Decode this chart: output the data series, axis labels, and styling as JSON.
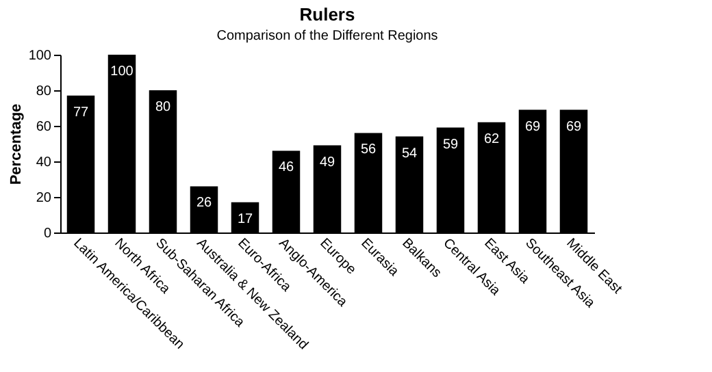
{
  "chart_data": {
    "type": "bar",
    "title": "Rulers",
    "subtitle": "Comparison of the Different Regions",
    "ylabel": "Percentage",
    "categories": [
      "Latin America/Caribbean",
      "North Africa",
      "Sub-Saharan Africa",
      "Australia & New Zealand",
      "Euro-Africa",
      "Anglo-America",
      "Europe",
      "Eurasia",
      "Balkans",
      "Central Asia",
      "East Asia",
      "Southeast Asia",
      "Middle East"
    ],
    "values": [
      77,
      100,
      80,
      26,
      17,
      46,
      49,
      56,
      54,
      59,
      62,
      69,
      69
    ],
    "color": "#000000",
    "ylim": [
      0,
      100
    ],
    "yticks": [
      0,
      20,
      40,
      60,
      80,
      100
    ],
    "grid": false,
    "data_labels": true
  }
}
